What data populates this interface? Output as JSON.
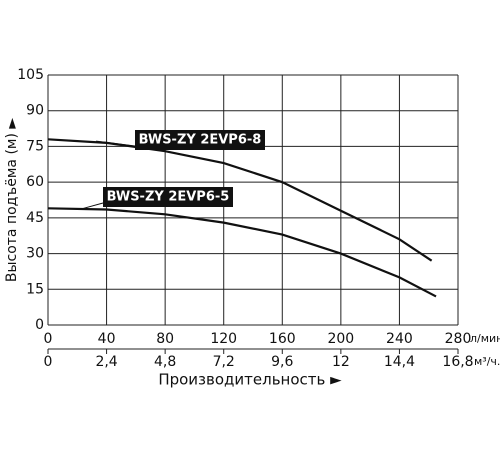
{
  "chart_data": {
    "type": "line",
    "ylabel": "Высота подъёма (м) ►",
    "xlabel": "Производительность ►",
    "x_unit": "л/мин.",
    "x2_unit": "м³/ч.",
    "xlim": [
      0,
      280
    ],
    "xticks": [
      0,
      40,
      80,
      120,
      160,
      200,
      240,
      280
    ],
    "x2lim": [
      0,
      16.8
    ],
    "x2ticks": [
      0,
      {
        "value": 2.4,
        "label": "2,4"
      },
      {
        "value": 4.8,
        "label": "4,8"
      },
      {
        "value": 7.2,
        "label": "7,2"
      },
      {
        "value": 9.6,
        "label": "9,6"
      },
      12,
      {
        "value": 14.4,
        "label": "14,4"
      },
      {
        "value": 16.8,
        "label": "16,8"
      }
    ],
    "ylim": [
      0,
      105
    ],
    "yticks": [
      0,
      15,
      30,
      45,
      60,
      75,
      90,
      105
    ],
    "grid": true,
    "series": [
      {
        "name": "BWS-ZY 2EVP6-8",
        "color": "#111111",
        "x": [
          0,
          40,
          80,
          120,
          160,
          200,
          240,
          262
        ],
        "values": [
          78,
          76.5,
          73,
          68,
          60,
          48,
          36,
          27
        ]
      },
      {
        "name": "BWS-ZY 2EVP6-5",
        "color": "#111111",
        "x": [
          0,
          40,
          80,
          120,
          160,
          200,
          240,
          265
        ],
        "values": [
          49,
          48.5,
          46.5,
          43,
          38,
          30,
          20,
          12
        ]
      }
    ]
  }
}
